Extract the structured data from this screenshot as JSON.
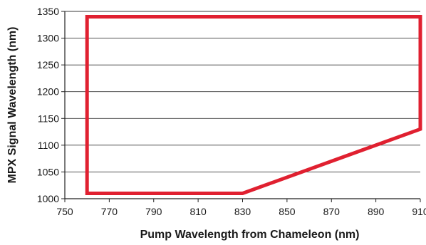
{
  "chart_data": {
    "type": "line",
    "title": "",
    "xlabel": "Pump Wavelength from Chameleon (nm)",
    "ylabel": "MPX Signal Wavelength (nm)",
    "xlim": [
      750,
      910
    ],
    "ylim": [
      1000,
      1350
    ],
    "x_ticks": [
      750,
      770,
      790,
      810,
      830,
      850,
      870,
      890,
      910
    ],
    "y_ticks": [
      1000,
      1050,
      1100,
      1150,
      1200,
      1250,
      1300,
      1350
    ],
    "grid": "horizontal",
    "legend": "none",
    "series": [
      {
        "color": "#e02030",
        "closed": true,
        "points": [
          {
            "x": 760,
            "y": 1340
          },
          {
            "x": 910,
            "y": 1340
          },
          {
            "x": 910,
            "y": 1130
          },
          {
            "x": 830,
            "y": 1010
          },
          {
            "x": 760,
            "y": 1010
          }
        ]
      }
    ]
  }
}
